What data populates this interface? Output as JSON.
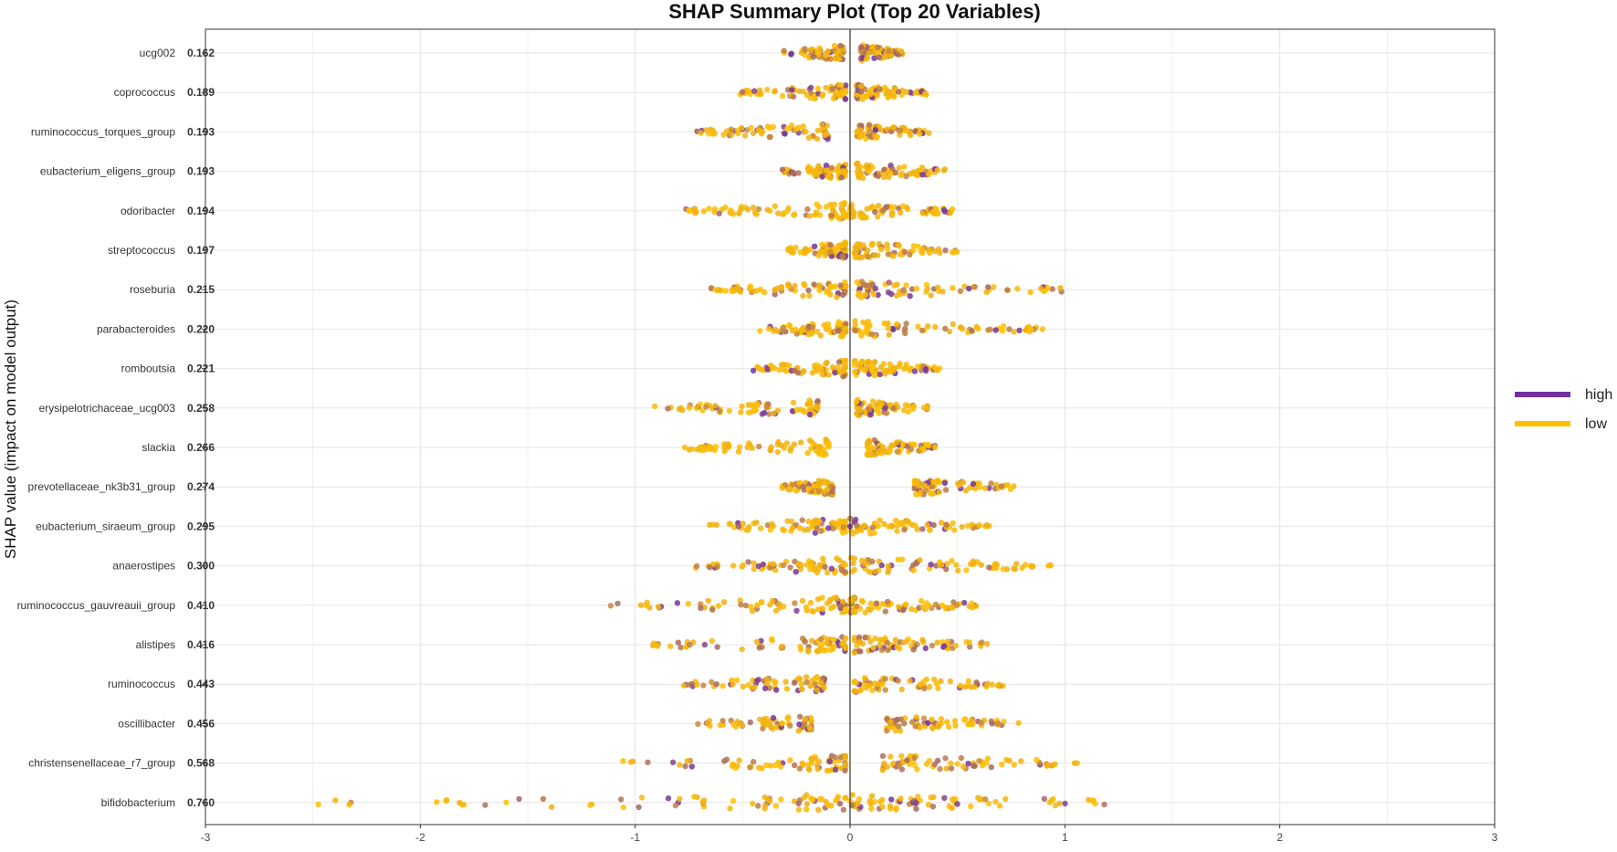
{
  "chart_data": {
    "type": "scatter",
    "title": "SHAP Summary Plot (Top 20 Variables)",
    "ylabel": "SHAP value (impact on model output)",
    "xlabel": "",
    "xlim": [
      -3,
      3
    ],
    "xticks": [
      -3,
      -2,
      -1,
      0,
      1,
      2,
      3
    ],
    "grid": true,
    "legend_position": "right",
    "legend": [
      {
        "name": "high",
        "color": "#7030a0"
      },
      {
        "name": "low",
        "color": "#ffc000"
      }
    ],
    "variables": [
      {
        "name": "ucg002",
        "mean_abs_shap": "0.162",
        "neg_range": [
          -0.32,
          -0.03
        ],
        "pos_range": [
          0.05,
          0.25
        ],
        "high_share": 0.45
      },
      {
        "name": "coprococcus",
        "mean_abs_shap": "0.189",
        "neg_range": [
          -0.52,
          -0.02
        ],
        "pos_range": [
          0.03,
          0.37
        ],
        "high_share": 0.35
      },
      {
        "name": "ruminococcus_torques_group",
        "mean_abs_shap": "0.193",
        "neg_range": [
          -0.73,
          -0.1
        ],
        "pos_range": [
          0.03,
          0.37
        ],
        "high_share": 0.35
      },
      {
        "name": "eubacterium_eligens_group",
        "mean_abs_shap": "0.193",
        "neg_range": [
          -0.32,
          -0.02
        ],
        "pos_range": [
          0.03,
          0.47
        ],
        "high_share": 0.2
      },
      {
        "name": "odoribacter",
        "mean_abs_shap": "0.194",
        "neg_range": [
          -0.78,
          -0.02
        ],
        "pos_range": [
          0.0,
          0.5
        ],
        "high_share": 0.2
      },
      {
        "name": "streptococcus",
        "mean_abs_shap": "0.197",
        "neg_range": [
          -0.3,
          -0.02
        ],
        "pos_range": [
          0.02,
          0.53
        ],
        "high_share": 0.2
      },
      {
        "name": "roseburia",
        "mean_abs_shap": "0.215",
        "neg_range": [
          -0.65,
          -0.02
        ],
        "pos_range": [
          0.03,
          1.02
        ],
        "high_share": 0.3
      },
      {
        "name": "parabacteroides",
        "mean_abs_shap": "0.220",
        "neg_range": [
          -0.42,
          -0.02
        ],
        "pos_range": [
          0.02,
          0.9
        ],
        "high_share": 0.25
      },
      {
        "name": "romboutsia",
        "mean_abs_shap": "0.221",
        "neg_range": [
          -0.48,
          -0.02
        ],
        "pos_range": [
          0.02,
          0.43
        ],
        "high_share": 0.2
      },
      {
        "name": "erysipelotrichaceae_ucg003",
        "mean_abs_shap": "0.258",
        "neg_range": [
          -0.93,
          -0.15
        ],
        "pos_range": [
          0.03,
          0.37
        ],
        "high_share": 0.25
      },
      {
        "name": "slackia",
        "mean_abs_shap": "0.266",
        "neg_range": [
          -0.78,
          -0.1
        ],
        "pos_range": [
          0.08,
          0.4
        ],
        "high_share": 0.15
      },
      {
        "name": "prevotellaceae_nk3b31_group",
        "mean_abs_shap": "0.274",
        "neg_range": [
          -0.32,
          -0.08
        ],
        "pos_range": [
          0.3,
          0.78
        ],
        "high_share": 0.3
      },
      {
        "name": "eubacterium_siraeum_group",
        "mean_abs_shap": "0.295",
        "neg_range": [
          -0.67,
          -0.02
        ],
        "pos_range": [
          0.0,
          0.66
        ],
        "high_share": 0.25
      },
      {
        "name": "anaerostipes",
        "mean_abs_shap": "0.300",
        "neg_range": [
          -0.72,
          -0.02
        ],
        "pos_range": [
          0.0,
          0.97
        ],
        "high_share": 0.25
      },
      {
        "name": "ruminococcus_gauvreauii_group",
        "mean_abs_shap": "0.410",
        "neg_range": [
          -1.12,
          -0.02
        ],
        "pos_range": [
          0.0,
          0.59
        ],
        "high_share": 0.3
      },
      {
        "name": "alistipes",
        "mean_abs_shap": "0.416",
        "neg_range": [
          -0.93,
          -0.02
        ],
        "pos_range": [
          0.02,
          0.64
        ],
        "high_share": 0.35
      },
      {
        "name": "ruminococcus",
        "mean_abs_shap": "0.443",
        "neg_range": [
          -0.78,
          -0.12
        ],
        "pos_range": [
          0.02,
          0.73
        ],
        "high_share": 0.4
      },
      {
        "name": "oscillibacter",
        "mean_abs_shap": "0.456",
        "neg_range": [
          -0.73,
          -0.18
        ],
        "pos_range": [
          0.17,
          0.79
        ],
        "high_share": 0.3
      },
      {
        "name": "christensenellaceae_r7_group",
        "mean_abs_shap": "0.568",
        "neg_range": [
          -1.07,
          -0.02
        ],
        "pos_range": [
          0.15,
          1.06
        ],
        "high_share": 0.35
      },
      {
        "name": "bifidobacterium",
        "mean_abs_shap": "0.760",
        "neg_range": [
          -2.48,
          -0.02
        ],
        "pos_range": [
          0.0,
          1.24
        ],
        "high_share": 0.3
      }
    ]
  }
}
